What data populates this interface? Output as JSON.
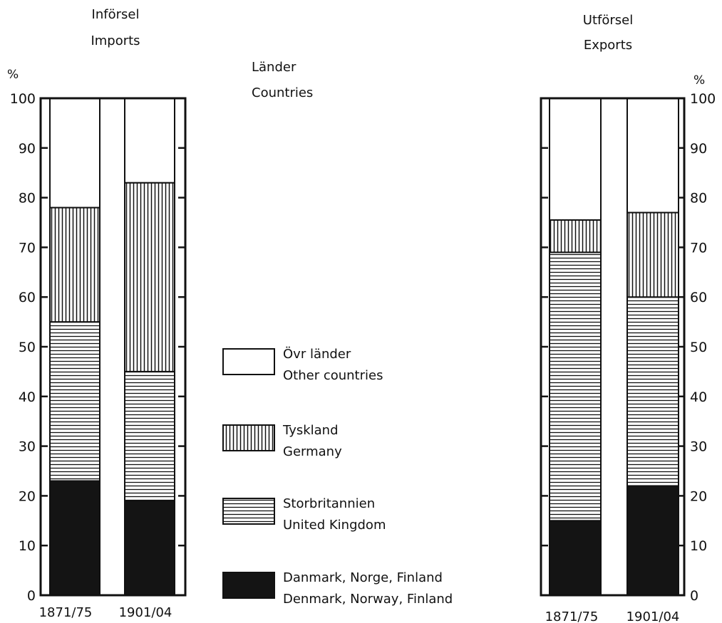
{
  "header": {
    "countries_sv": "Länder",
    "countries_en": "Countries"
  },
  "legend": [
    {
      "key": "other",
      "sv": "Övr länder",
      "en": "Other countries",
      "pattern": "white"
    },
    {
      "key": "germany",
      "sv": "Tyskland",
      "en": "Germany",
      "pattern": "vertical"
    },
    {
      "key": "uk",
      "sv": "Storbritannien",
      "en": "United Kingdom",
      "pattern": "horizontal"
    },
    {
      "key": "nordic",
      "sv": "Danmark, Norge, Finland",
      "en": "Denmark, Norway, Finland",
      "pattern": "black"
    }
  ],
  "chart_data": [
    {
      "type": "bar",
      "stacked": true,
      "title": "Införsel",
      "subtitle": "Imports",
      "ylabel": "%",
      "ylim": [
        0,
        100
      ],
      "yticks": [
        "0",
        "10",
        "20",
        "30",
        "40",
        "50",
        "60",
        "70",
        "80",
        "90",
        "100"
      ],
      "axis_side": "left",
      "categories": [
        "1871/75",
        "1901/04"
      ],
      "series": [
        {
          "key": "nordic",
          "values": [
            23,
            19
          ]
        },
        {
          "key": "uk",
          "values": [
            32,
            26
          ]
        },
        {
          "key": "germany",
          "values": [
            23,
            38
          ]
        },
        {
          "key": "other",
          "values": [
            22,
            17
          ]
        }
      ]
    },
    {
      "type": "bar",
      "stacked": true,
      "title": "Utförsel",
      "subtitle": "Exports",
      "ylabel": "%",
      "ylim": [
        0,
        100
      ],
      "yticks": [
        "0",
        "10",
        "20",
        "30",
        "40",
        "50",
        "60",
        "70",
        "80",
        "90",
        "100"
      ],
      "axis_side": "right",
      "categories": [
        "1871/75",
        "1901/04"
      ],
      "series": [
        {
          "key": "nordic",
          "values": [
            15,
            22
          ]
        },
        {
          "key": "uk",
          "values": [
            54,
            38
          ]
        },
        {
          "key": "germany",
          "values": [
            6.5,
            17
          ]
        },
        {
          "key": "other",
          "values": [
            24.5,
            23
          ]
        }
      ]
    }
  ]
}
